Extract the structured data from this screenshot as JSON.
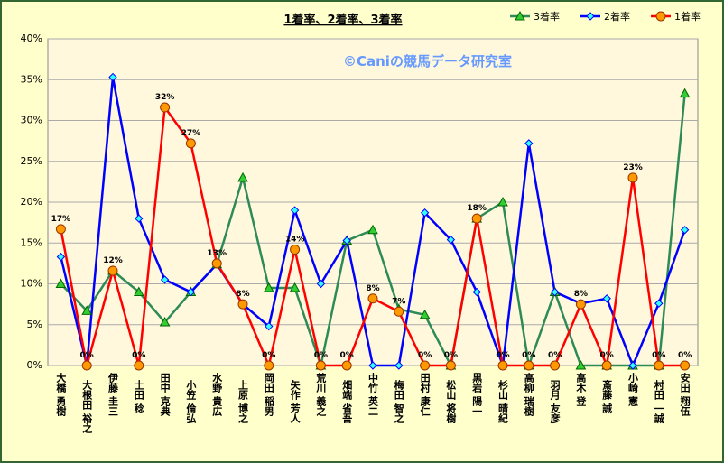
{
  "chart_data": {
    "type": "line",
    "title": "1着率、2着率、3着率",
    "annotation": "©Caniの競馬データ研究室",
    "categories": [
      "大橋 勇樹",
      "大根田 裕之",
      "伊藤 圭三",
      "土田 稔",
      "田中 克典",
      "小笠 倫弘",
      "水野 貴広",
      "上原 博之",
      "岡田 稲男",
      "矢作 芳人",
      "荒川 義之",
      "畑端 省吾",
      "中竹 英二",
      "梅田 智之",
      "田村 康仁",
      "松山 将樹",
      "黒岩 陽一",
      "杉山 晴紀",
      "高柳 瑞樹",
      "羽月 友彦",
      "高木 登",
      "斎藤 誠",
      "小崎 憲",
      "村田 一誠",
      "安田 翔伍"
    ],
    "series": [
      {
        "name": "3着率",
        "color": "#2e8b57",
        "marker": "triangle",
        "marker_fill": "#33cc33",
        "values": [
          10,
          6.7,
          11.6,
          9,
          5.3,
          9,
          12.4,
          23,
          9.5,
          9.5,
          0,
          15.3,
          16.6,
          6.9,
          6.2,
          0,
          18,
          20,
          0,
          9,
          0,
          0,
          0,
          0,
          33.3
        ]
      },
      {
        "name": "2着率",
        "color": "#0000ff",
        "marker": "diamond",
        "marker_fill": "#33ffff",
        "values": [
          13.3,
          0,
          35.3,
          18,
          10.5,
          9,
          12.4,
          7.5,
          4.8,
          19,
          10,
          15.3,
          0,
          0,
          18.7,
          15.4,
          9,
          0,
          27.2,
          9,
          7.6,
          8.2,
          0,
          7.6,
          16.6
        ]
      },
      {
        "name": "1着率",
        "color": "#ff0000",
        "marker": "circle",
        "marker_fill": "#ff9900",
        "values": [
          16.7,
          0,
          11.6,
          0,
          31.6,
          27.2,
          12.5,
          7.5,
          0,
          14.2,
          0,
          0,
          8.2,
          6.6,
          0,
          0,
          18,
          0,
          0,
          0,
          7.5,
          0,
          23,
          0,
          0
        ],
        "value_labels": [
          "17%",
          "0%",
          "12%",
          "0%",
          "32%",
          "27%",
          "13%",
          "8%",
          "0%",
          "14%",
          "0%",
          "0%",
          "8%",
          "7%",
          "0%",
          "0%",
          "18%",
          "0%",
          "0%",
          "0%",
          "8%",
          "0%",
          "23%",
          "0%",
          "0%"
        ]
      }
    ],
    "ylim": [
      0,
      40
    ],
    "yticks": [
      {
        "value": 0,
        "label": "0%"
      },
      {
        "value": 5,
        "label": "5%"
      },
      {
        "value": 10,
        "label": "10%"
      },
      {
        "value": 15,
        "label": "15%"
      },
      {
        "value": 20,
        "label": "20%"
      },
      {
        "value": 25,
        "label": "25%"
      },
      {
        "value": 30,
        "label": "30%"
      },
      {
        "value": 35,
        "label": "35%"
      },
      {
        "value": 40,
        "label": "40%"
      }
    ],
    "grid": true,
    "legend": "top-right"
  }
}
